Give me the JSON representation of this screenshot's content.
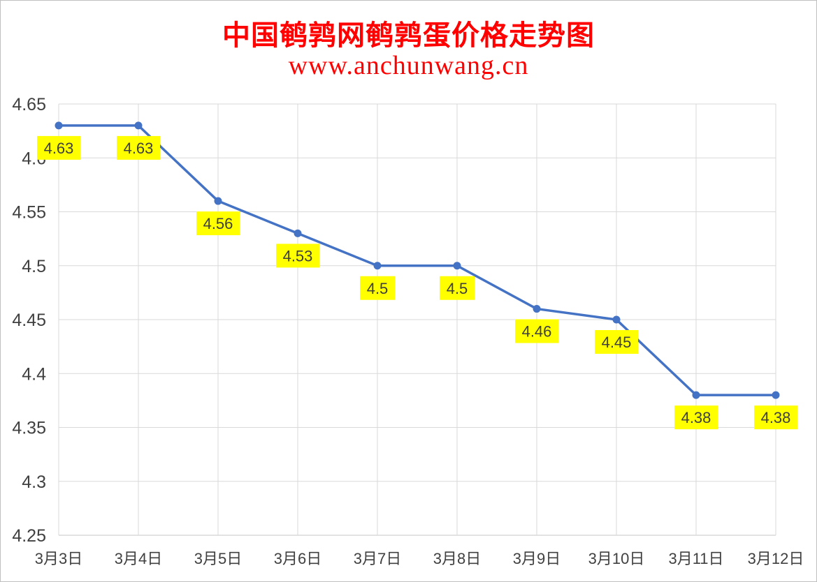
{
  "chart_data": {
    "type": "line",
    "title": "中国鹌鹑网鹌鹑蛋价格走势图",
    "subtitle": "www.anchunwang.cn",
    "categories": [
      "3月3日",
      "3月4日",
      "3月5日",
      "3月6日",
      "3月7日",
      "3月8日",
      "3月9日",
      "3月10日",
      "3月11日",
      "3月12日"
    ],
    "values": [
      4.63,
      4.63,
      4.56,
      4.53,
      4.5,
      4.5,
      4.46,
      4.45,
      4.38,
      4.38
    ],
    "data_labels": [
      "4.63",
      "4.63",
      "4.56",
      "4.53",
      "4.5",
      "4.5",
      "4.46",
      "4.45",
      "4.38",
      "4.38"
    ],
    "y_ticks": [
      "4.25",
      "4.3",
      "4.35",
      "4.4",
      "4.45",
      "4.5",
      "4.55",
      "4.6",
      "4.65"
    ],
    "ylim": [
      4.25,
      4.65
    ],
    "xlabel": "",
    "ylabel": "",
    "grid": true,
    "legend": "none",
    "colors": {
      "line": "#4472c4",
      "label_background": "#ffff00",
      "title": "#ff0000",
      "grid": "#d9d9d9",
      "text": "#404040"
    }
  }
}
